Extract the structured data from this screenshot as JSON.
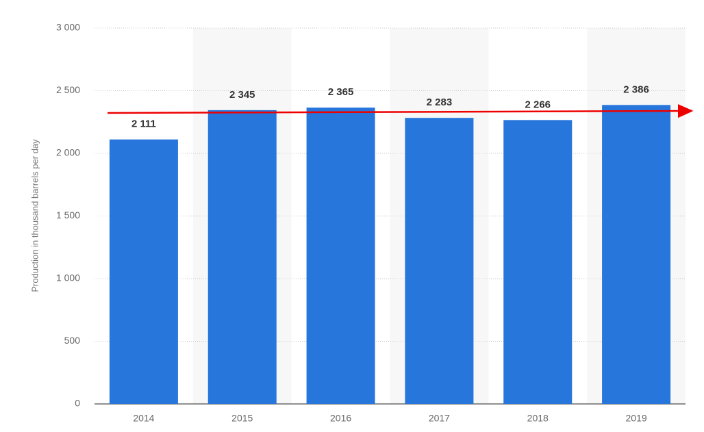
{
  "chart_data": {
    "type": "bar",
    "y_label": "Production in thousand barrels per day",
    "categories": [
      "2014",
      "2015",
      "2016",
      "2017",
      "2018",
      "2019"
    ],
    "values": [
      2111,
      2345,
      2365,
      2283,
      2266,
      2386
    ],
    "value_labels": [
      "2 111",
      "2 345",
      "2 365",
      "2 283",
      "2 266",
      "2 386"
    ],
    "color": "#2776dc",
    "ylim": [
      0,
      3000
    ],
    "yticks": [
      0,
      500,
      {
        "value": 1000,
        "label": "1 000"
      },
      {
        "value": 1500,
        "label": "1 500"
      },
      {
        "value": 2000,
        "label": "2 000"
      },
      {
        "value": 2500,
        "label": "2 500"
      },
      {
        "value": 3000,
        "label": "3 000"
      }
    ],
    "grid": true
  }
}
